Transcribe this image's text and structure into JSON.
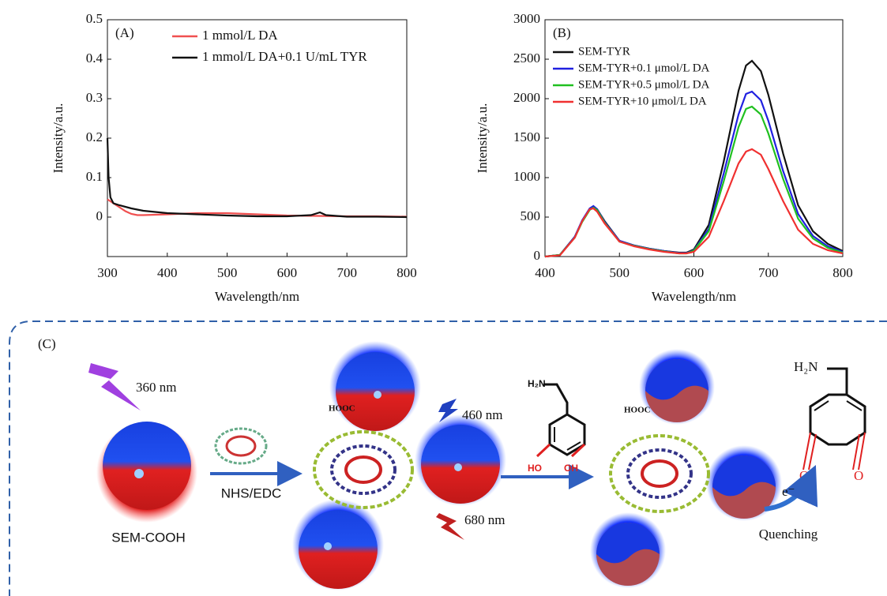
{
  "chart_data": [
    {
      "type": "line",
      "annotation": "(A)",
      "x_label": "Wavelength/nm",
      "y_label": "Intensity/a.u.",
      "xlim": [
        300,
        800
      ],
      "xticks": [
        300,
        400,
        500,
        600,
        700,
        800
      ],
      "ylim": [
        -0.1,
        0.5
      ],
      "yticks": [
        0,
        0.1,
        0.2,
        0.3,
        0.4,
        0.5
      ],
      "series": [
        {
          "name": "1 mmol/L DA",
          "color": "#f05050",
          "x": [
            300,
            305,
            310,
            320,
            330,
            340,
            350,
            360,
            380,
            400,
            450,
            500,
            550,
            600,
            650,
            700,
            750,
            800
          ],
          "values": [
            0.045,
            0.04,
            0.035,
            0.025,
            0.015,
            0.008,
            0.005,
            0.005,
            0.006,
            0.007,
            0.01,
            0.01,
            0.007,
            0.004,
            0.003,
            0.002,
            0.002,
            0.001
          ]
        },
        {
          "name": "1 mmol/L DA+0.1 U/mL TYR",
          "color": "#111111",
          "x": [
            300,
            302,
            305,
            310,
            320,
            340,
            360,
            400,
            450,
            500,
            550,
            600,
            640,
            655,
            665,
            700,
            750,
            800
          ],
          "values": [
            0.2,
            0.1,
            0.05,
            0.035,
            0.03,
            0.022,
            0.016,
            0.01,
            0.007,
            0.004,
            0.002,
            0.002,
            0.005,
            0.012,
            0.005,
            0.001,
            0.001,
            0
          ]
        }
      ]
    },
    {
      "type": "line",
      "annotation": "(B)",
      "x_label": "Wavelength/nm",
      "y_label": "Intensity/a.u.",
      "xlim": [
        400,
        800
      ],
      "xticks": [
        400,
        500,
        600,
        700,
        800
      ],
      "ylim": [
        0,
        3000
      ],
      "yticks": [
        0,
        500,
        1000,
        1500,
        2000,
        2500,
        3000
      ],
      "x": [
        400,
        420,
        440,
        450,
        460,
        465,
        470,
        480,
        500,
        520,
        540,
        560,
        580,
        590,
        600,
        620,
        640,
        660,
        670,
        678,
        690,
        700,
        720,
        740,
        760,
        780,
        800
      ],
      "series": [
        {
          "name": "SEM-TYR",
          "color": "#111111",
          "values": [
            0,
            20,
            250,
            450,
            600,
            630,
            600,
            450,
            200,
            140,
            100,
            70,
            50,
            50,
            90,
            400,
            1200,
            2100,
            2420,
            2480,
            2350,
            2050,
            1300,
            650,
            320,
            160,
            70
          ]
        },
        {
          "name": "SEM-TYR+0.1 μmol/L DA",
          "color": "#2020e0",
          "values": [
            0,
            20,
            250,
            460,
            610,
            640,
            600,
            440,
            200,
            140,
            100,
            70,
            45,
            45,
            80,
            350,
            1050,
            1800,
            2060,
            2090,
            1980,
            1720,
            1080,
            540,
            260,
            130,
            60
          ]
        },
        {
          "name": "SEM-TYR+0.5 μmol/L DA",
          "color": "#20c020",
          "values": [
            0,
            20,
            240,
            440,
            590,
            620,
            590,
            430,
            190,
            135,
            95,
            65,
            40,
            40,
            75,
            320,
            950,
            1640,
            1870,
            1900,
            1800,
            1560,
            980,
            480,
            230,
            110,
            50
          ]
        },
        {
          "name": "SEM-TYR+10 μmol/L DA",
          "color": "#f03030",
          "values": [
            0,
            15,
            240,
            450,
            600,
            610,
            570,
            420,
            190,
            130,
            90,
            60,
            40,
            40,
            60,
            250,
            700,
            1180,
            1330,
            1360,
            1290,
            1110,
            700,
            340,
            160,
            80,
            40
          ]
        }
      ]
    }
  ],
  "diagram": {
    "panel_label": "(C)",
    "excitation": "360 nm",
    "particle": "SEM-COOH",
    "coupling": "NHS/EDC",
    "emission_blue": "460 nm",
    "emission_red": "680 nm",
    "quenching": "Quenching",
    "electron": "e⁻",
    "dopamine": {
      "amine": "H₂N",
      "hydroxyl_left": "HO",
      "hydroxyl_right": "OH"
    },
    "quinone": {
      "amine": "H₂N",
      "oxo_left": "O",
      "oxo_right": "O"
    },
    "enzyme_labels": [
      "HOOC",
      "HOOC"
    ]
  }
}
